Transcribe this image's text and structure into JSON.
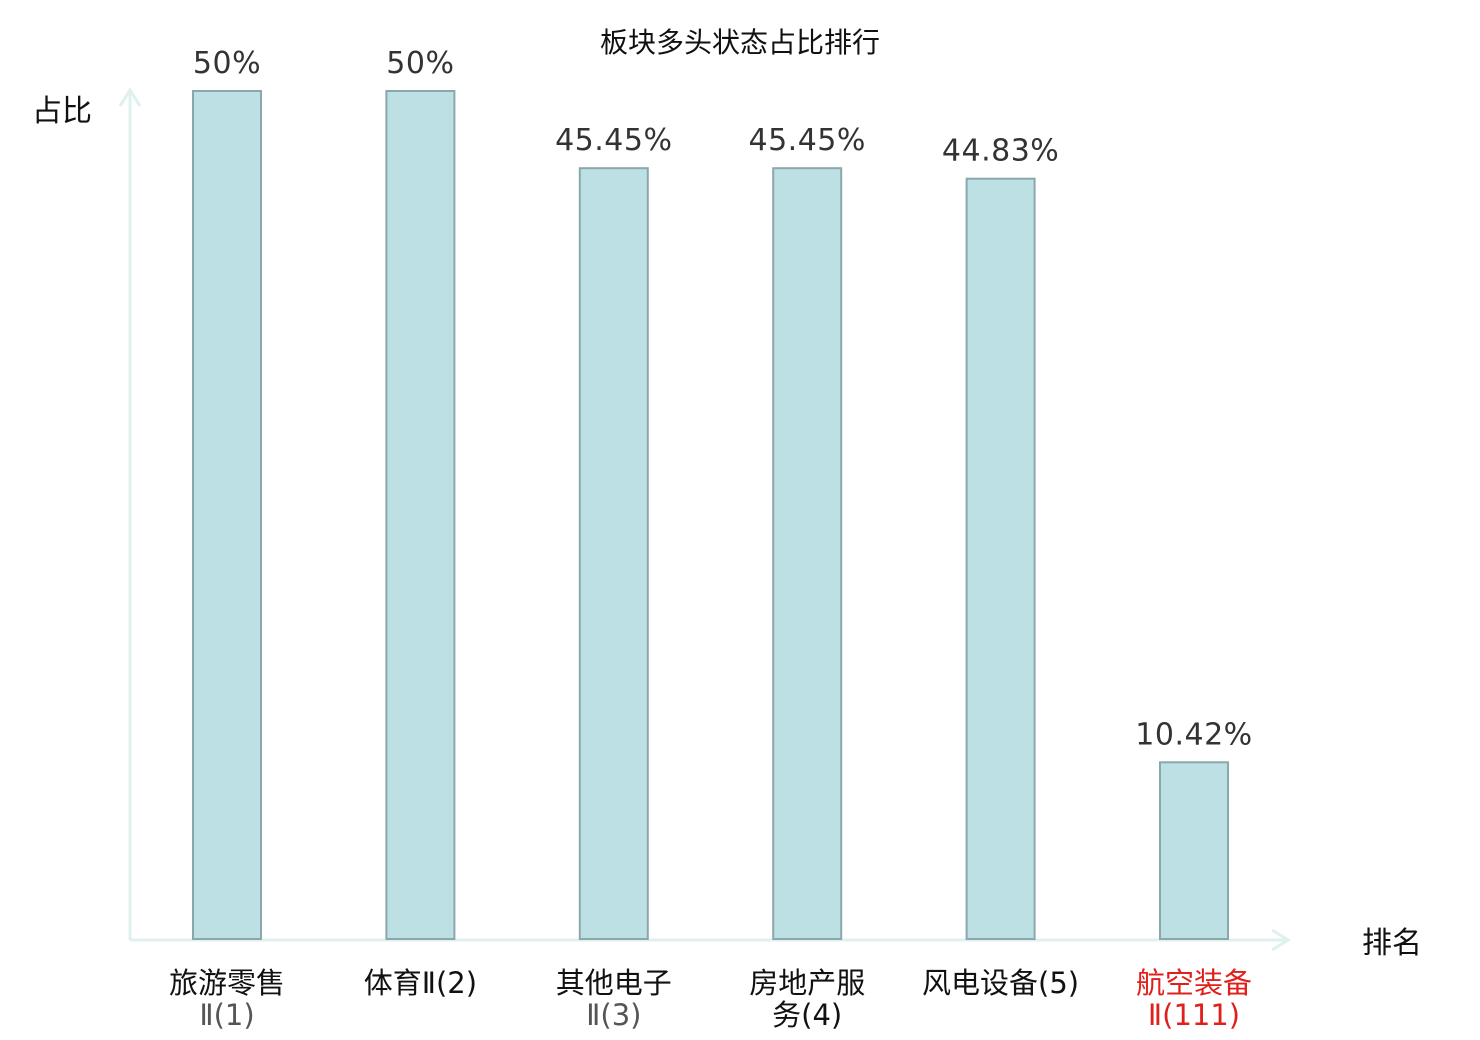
{
  "chart_data": {
    "type": "bar",
    "title": "板块多头状态占比排行",
    "ylabel": "占比",
    "xlabel": "排名",
    "ylim": [
      0,
      50
    ],
    "categories": [
      {
        "line1": "旅游零售",
        "line2": "Ⅱ(1)",
        "line2_is_rank": true
      },
      {
        "line1": "体育Ⅱ(2)",
        "line2": "",
        "line2_is_rank": false
      },
      {
        "line1": "其他电子",
        "line2": "Ⅱ(3)",
        "line2_is_rank": true
      },
      {
        "line1": "房地产服",
        "line2": "务(4)",
        "line2_is_rank": false
      },
      {
        "line1": "风电设备(5)",
        "line2": "",
        "line2_is_rank": false
      },
      {
        "line1": "航空装备",
        "line2": "Ⅱ(111)",
        "line2_is_rank": true
      }
    ],
    "values": [
      50,
      50,
      45.45,
      45.45,
      44.83,
      10.42
    ],
    "value_labels": [
      "50%",
      "50%",
      "45.45%",
      "45.45%",
      "44.83%",
      "10.42%"
    ],
    "highlight_index": 5,
    "grid": false,
    "colors": {
      "bar_fill": "#bce0e3",
      "bar_stroke": "#8aa8ab",
      "axis": "#dff1ef",
      "highlight_text": "#e0201c"
    }
  }
}
